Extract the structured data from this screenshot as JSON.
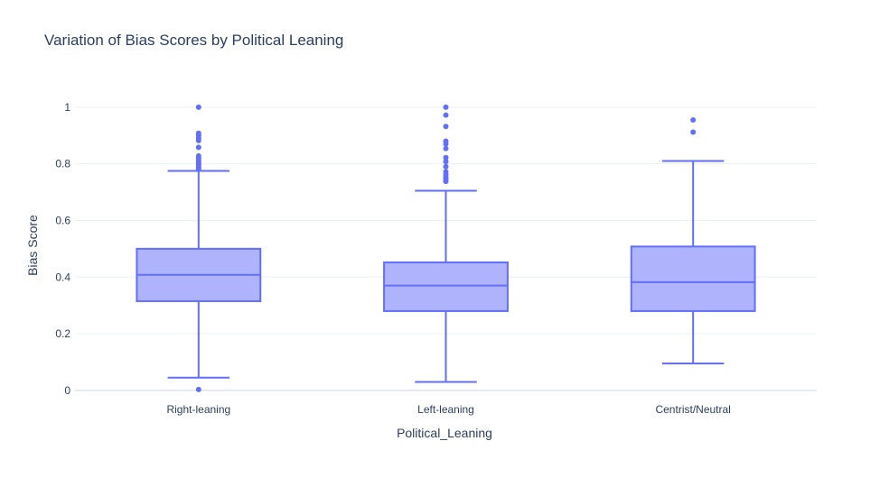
{
  "chart_data": {
    "type": "box",
    "title": "Variation of Bias Scores by Political Leaning",
    "xlabel": "Political_Leaning",
    "ylabel": "Bias Score",
    "ylim": [
      -0.01,
      1.06
    ],
    "yticks": [
      0,
      0.2,
      0.4,
      0.6,
      0.8,
      1
    ],
    "ytick_labels": [
      "0",
      "0.2",
      "0.4",
      "0.6",
      "0.8",
      "1"
    ],
    "grid": true,
    "legend": "none",
    "colors": {
      "box_line": "#636efa",
      "box_fill": "#aeb3fc",
      "grid": "#ebf0f8",
      "zero_line": "#ebf0f8",
      "title": "#2a3f5f",
      "tick": "#2a3f5f"
    },
    "categories": [
      "Right-leaning",
      "Left-leaning",
      "Centrist/Neutral"
    ],
    "boxes": [
      {
        "category": "Right-leaning",
        "min": 0.045,
        "q1": 0.315,
        "median": 0.408,
        "q3": 0.5,
        "max": 0.775,
        "outliers": [
          1.0,
          0.908,
          0.9,
          0.89,
          0.882,
          0.858,
          0.828,
          0.82,
          0.812,
          0.806,
          0.8,
          0.795,
          0.788,
          0.782,
          0.003
        ]
      },
      {
        "category": "Left-leaning",
        "min": 0.03,
        "q1": 0.28,
        "median": 0.37,
        "q3": 0.452,
        "max": 0.705,
        "outliers": [
          1.0,
          0.972,
          0.932,
          0.88,
          0.87,
          0.854,
          0.822,
          0.808,
          0.79,
          0.772,
          0.762,
          0.752,
          0.745,
          0.738
        ]
      },
      {
        "category": "Centrist/Neutral",
        "min": 0.095,
        "q1": 0.28,
        "median": 0.382,
        "q3": 0.508,
        "max": 0.81,
        "outliers": [
          0.955,
          0.912
        ]
      }
    ]
  }
}
